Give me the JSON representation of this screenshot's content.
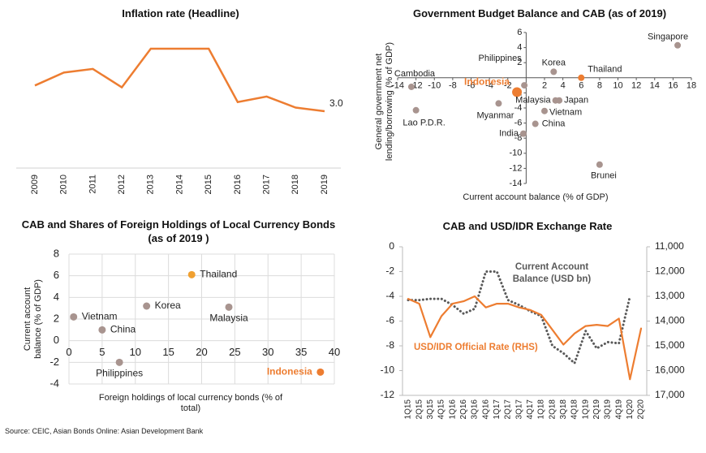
{
  "chart_data": [
    {
      "type": "line",
      "title": "Inflation rate (Headline)",
      "categories": [
        "2009",
        "2010",
        "2011",
        "2012",
        "2013",
        "2014",
        "2015",
        "2016",
        "2017",
        "2018",
        "2019"
      ],
      "values": [
        4.4,
        5.1,
        5.3,
        4.3,
        6.4,
        6.4,
        6.4,
        3.5,
        3.8,
        3.2,
        3.0
      ],
      "value_labels": [
        null,
        null,
        null,
        null,
        null,
        null,
        null,
        null,
        null,
        null,
        "3.0"
      ],
      "color": "#ed7d31"
    },
    {
      "type": "scatter",
      "title": "Government Budget Balance and CAB (as of 2019)",
      "xlabel": "Current account balance (% of GDP)",
      "ylabel": "General government net lending/borrowing (% of GDP)",
      "labels": [
        "Singapore",
        "Korea",
        "Thailand",
        "Philippines",
        "Indonesia",
        "Cambodia",
        "Lao P.D.R.",
        "Myanmar",
        "Malaysia",
        "Japan",
        "Vietnam",
        "China",
        "India",
        "Brunei"
      ],
      "x": [
        16.5,
        3.0,
        6.0,
        -0.2,
        -1.0,
        -12.5,
        -12.0,
        -3.0,
        3.2,
        3.6,
        2.0,
        1.0,
        -0.3,
        8.0
      ],
      "values": [
        4.3,
        0.8,
        0.0,
        -1.0,
        -1.9,
        -1.2,
        -4.3,
        -3.4,
        -3.0,
        -3.0,
        -4.4,
        -6.1,
        -7.4,
        -11.5
      ],
      "colors": [
        "#a8948f",
        "#a8948f",
        "#ed7d31",
        "#a8948f",
        "#ed7d31",
        "#a8948f",
        "#a8948f",
        "#a8948f",
        "#a8948f",
        "#a8948f",
        "#a8948f",
        "#a8948f",
        "#a8948f",
        "#a8948f"
      ],
      "xlim": [
        -14,
        18
      ],
      "xticks": [
        -14,
        -12,
        -10,
        -8,
        -6,
        -4,
        -2,
        2,
        4,
        6,
        8,
        10,
        12,
        14,
        16,
        18
      ],
      "ylim": [
        -14,
        6
      ],
      "yticks": [
        6,
        4,
        2,
        -2,
        -4,
        -6,
        -8,
        -10,
        -12,
        -14
      ]
    },
    {
      "type": "scatter",
      "title": "CAB and Shares of Foreign Holdings of Local Currency Bonds (as of 2019 )",
      "xlabel": "Foreign holdings of local currency bonds (% of total)",
      "ylabel": "Current account balance (% of GDP)",
      "labels": [
        "Vietnam",
        "China",
        "Korea",
        "Thailand",
        "Malaysia",
        "Philippines",
        "Indonesia"
      ],
      "x": [
        0.7,
        5.0,
        11.7,
        18.5,
        24.1,
        7.6,
        37.9
      ],
      "values": [
        2.2,
        1.0,
        3.2,
        6.1,
        3.1,
        -2.0,
        -2.9
      ],
      "colors": [
        "#a8948f",
        "#a8948f",
        "#a8948f",
        "#f0a030",
        "#a8948f",
        "#a8948f",
        "#ed7d31"
      ],
      "xlim": [
        0,
        40
      ],
      "xticks": [
        0,
        5,
        10,
        15,
        20,
        25,
        30,
        35,
        40
      ],
      "ylim": [
        -4,
        8
      ],
      "yticks": [
        -4,
        -2,
        0,
        2,
        4,
        6,
        8
      ],
      "grid": true
    },
    {
      "type": "line",
      "title": "CAB and USD/IDR Exchange Rate",
      "categories": [
        "1Q15",
        "2Q15",
        "3Q15",
        "4Q15",
        "1Q16",
        "2Q16",
        "3Q16",
        "4Q16",
        "1Q17",
        "2Q17",
        "3Q17",
        "4Q17",
        "1Q18",
        "2Q18",
        "3Q18",
        "4Q18",
        "1Q19",
        "2Q19",
        "3Q19",
        "4Q19",
        "1Q20",
        "2Q20"
      ],
      "ylim": [
        -12,
        0
      ],
      "yticks": [
        0,
        -2,
        -4,
        -6,
        -8,
        -10,
        -12
      ],
      "y2lim": [
        17000,
        11000
      ],
      "y2ticks": [
        {
          "value": 11000,
          "label": "11,000"
        },
        {
          "value": 12000,
          "label": "12,000"
        },
        {
          "value": 13000,
          "label": "13,000"
        },
        {
          "value": 14000,
          "label": "14,000"
        },
        {
          "value": 15000,
          "label": "15,000"
        },
        {
          "value": 16000,
          "label": "16,000"
        },
        {
          "value": 17000,
          "label": "17,000"
        }
      ],
      "series": [
        {
          "name": "Current Account Balance (USD bn)",
          "color": "#595959",
          "style": "dotted",
          "values": [
            -4.3,
            -4.3,
            -4.2,
            -4.2,
            -4.7,
            -5.4,
            -5.0,
            -2.0,
            -2.0,
            -4.3,
            -4.7,
            -5.2,
            -5.6,
            -8.0,
            -8.6,
            -9.4,
            -6.8,
            -8.2,
            -7.7,
            -7.8,
            -4.0,
            null
          ]
        },
        {
          "name": "USD/IDR Official Rate (RHS)",
          "color": "#ed7d31",
          "axis": "y2",
          "values": [
            13100,
            13300,
            14650,
            13800,
            13300,
            13200,
            13000,
            13450,
            13300,
            13300,
            13450,
            13550,
            13750,
            14350,
            14950,
            14500,
            14200,
            14150,
            14200,
            13900,
            16350,
            14300
          ]
        }
      ]
    }
  ],
  "source": "Source: CEIC, Asian Bonds Online: Asian Development Bank"
}
